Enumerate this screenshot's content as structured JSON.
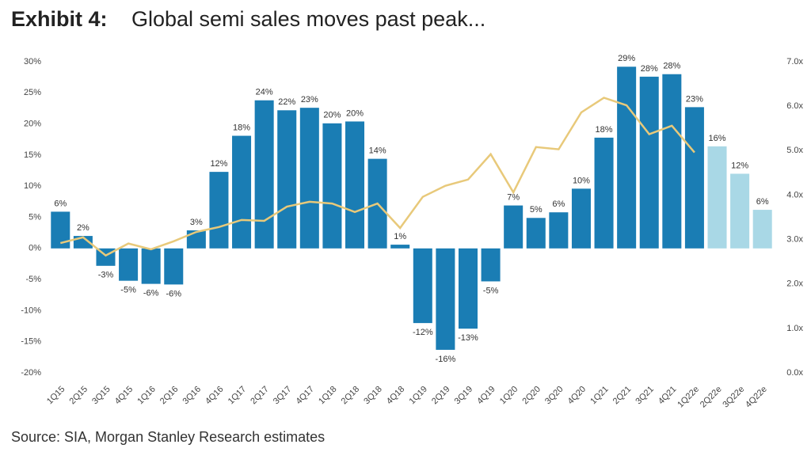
{
  "chart_data": {
    "type": "bar_line",
    "title_prefix": "Exhibit 4:",
    "title": "Global semi sales moves past peak...",
    "source": "Source: SIA, Morgan Stanley Research estimates",
    "categories": [
      "1Q15",
      "2Q15",
      "3Q15",
      "4Q15",
      "1Q16",
      "2Q16",
      "3Q16",
      "4Q16",
      "1Q17",
      "2Q17",
      "3Q17",
      "4Q17",
      "1Q18",
      "2Q18",
      "3Q18",
      "4Q18",
      "1Q19",
      "2Q19",
      "3Q19",
      "4Q19",
      "1Q20",
      "2Q20",
      "3Q20",
      "4Q20",
      "1Q21",
      "2Q21",
      "3Q21",
      "4Q21",
      "1Q22e",
      "2Q22e",
      "3Q22e",
      "4Q22e"
    ],
    "series": [
      {
        "type": "bar",
        "values": [
          5.9,
          2.0,
          -2.8,
          -5.2,
          -5.7,
          -5.8,
          2.9,
          12.3,
          18.1,
          23.8,
          22.2,
          22.6,
          20.1,
          20.4,
          14.4,
          0.6,
          -12.0,
          -16.3,
          -12.9,
          -5.3,
          6.9,
          4.9,
          5.8,
          9.6,
          17.8,
          29.2,
          27.6,
          28.0,
          22.7,
          16.4,
          12.0,
          6.2
        ],
        "value_labels": [
          "6%",
          "2%",
          "-3%",
          "-5%",
          "-6%",
          "-6%",
          "3%",
          "12%",
          "18%",
          "24%",
          "22%",
          "23%",
          "20%",
          "20%",
          "14%",
          "1%",
          "-12%",
          "-16%",
          "-13%",
          "-5%",
          "7%",
          "5%",
          "6%",
          "10%",
          "18%",
          "29%",
          "28%",
          "28%",
          "23%",
          "16%",
          "12%",
          "6%"
        ],
        "colors": [
          "#1a7db4",
          "#1a7db4",
          "#1a7db4",
          "#1a7db4",
          "#1a7db4",
          "#1a7db4",
          "#1a7db4",
          "#1a7db4",
          "#1a7db4",
          "#1a7db4",
          "#1a7db4",
          "#1a7db4",
          "#1a7db4",
          "#1a7db4",
          "#1a7db4",
          "#1a7db4",
          "#1a7db4",
          "#1a7db4",
          "#1a7db4",
          "#1a7db4",
          "#1a7db4",
          "#1a7db4",
          "#1a7db4",
          "#1a7db4",
          "#1a7db4",
          "#1a7db4",
          "#1a7db4",
          "#1a7db4",
          "#1a7db4",
          "#a9d8e6",
          "#a9d8e6",
          "#a9d8e6"
        ]
      },
      {
        "type": "line",
        "axis": "y2",
        "color": "#e8c97a",
        "values": [
          2.92,
          3.05,
          2.64,
          2.91,
          2.78,
          2.96,
          3.17,
          3.28,
          3.44,
          3.42,
          3.74,
          3.85,
          3.81,
          3.62,
          3.81,
          3.26,
          3.96,
          4.21,
          4.35,
          4.92,
          4.06,
          5.08,
          5.03,
          5.86,
          6.19,
          6.02,
          5.37,
          5.56,
          4.96,
          null,
          null,
          null
        ]
      }
    ],
    "ylim": [
      -20,
      30
    ],
    "yticks": [
      {
        "value": -20,
        "label": "-20%"
      },
      {
        "value": -15,
        "label": "-15%"
      },
      {
        "value": -10,
        "label": "-10%"
      },
      {
        "value": -5,
        "label": "-5%"
      },
      {
        "value": 0,
        "label": "0%"
      },
      {
        "value": 5,
        "label": "5%"
      },
      {
        "value": 10,
        "label": "10%"
      },
      {
        "value": 15,
        "label": "15%"
      },
      {
        "value": 20,
        "label": "20%"
      },
      {
        "value": 25,
        "label": "25%"
      },
      {
        "value": 30,
        "label": "30%"
      }
    ],
    "y2lim": [
      0,
      7
    ],
    "y2ticks": [
      {
        "value": 0,
        "label": "0.0x"
      },
      {
        "value": 1,
        "label": "1.0x"
      },
      {
        "value": 2,
        "label": "2.0x"
      },
      {
        "value": 3,
        "label": "3.0x"
      },
      {
        "value": 4,
        "label": "4.0x"
      },
      {
        "value": 5,
        "label": "5.0x"
      },
      {
        "value": 6,
        "label": "6.0x"
      },
      {
        "value": 7,
        "label": "7.0x"
      }
    ],
    "grid": false
  }
}
